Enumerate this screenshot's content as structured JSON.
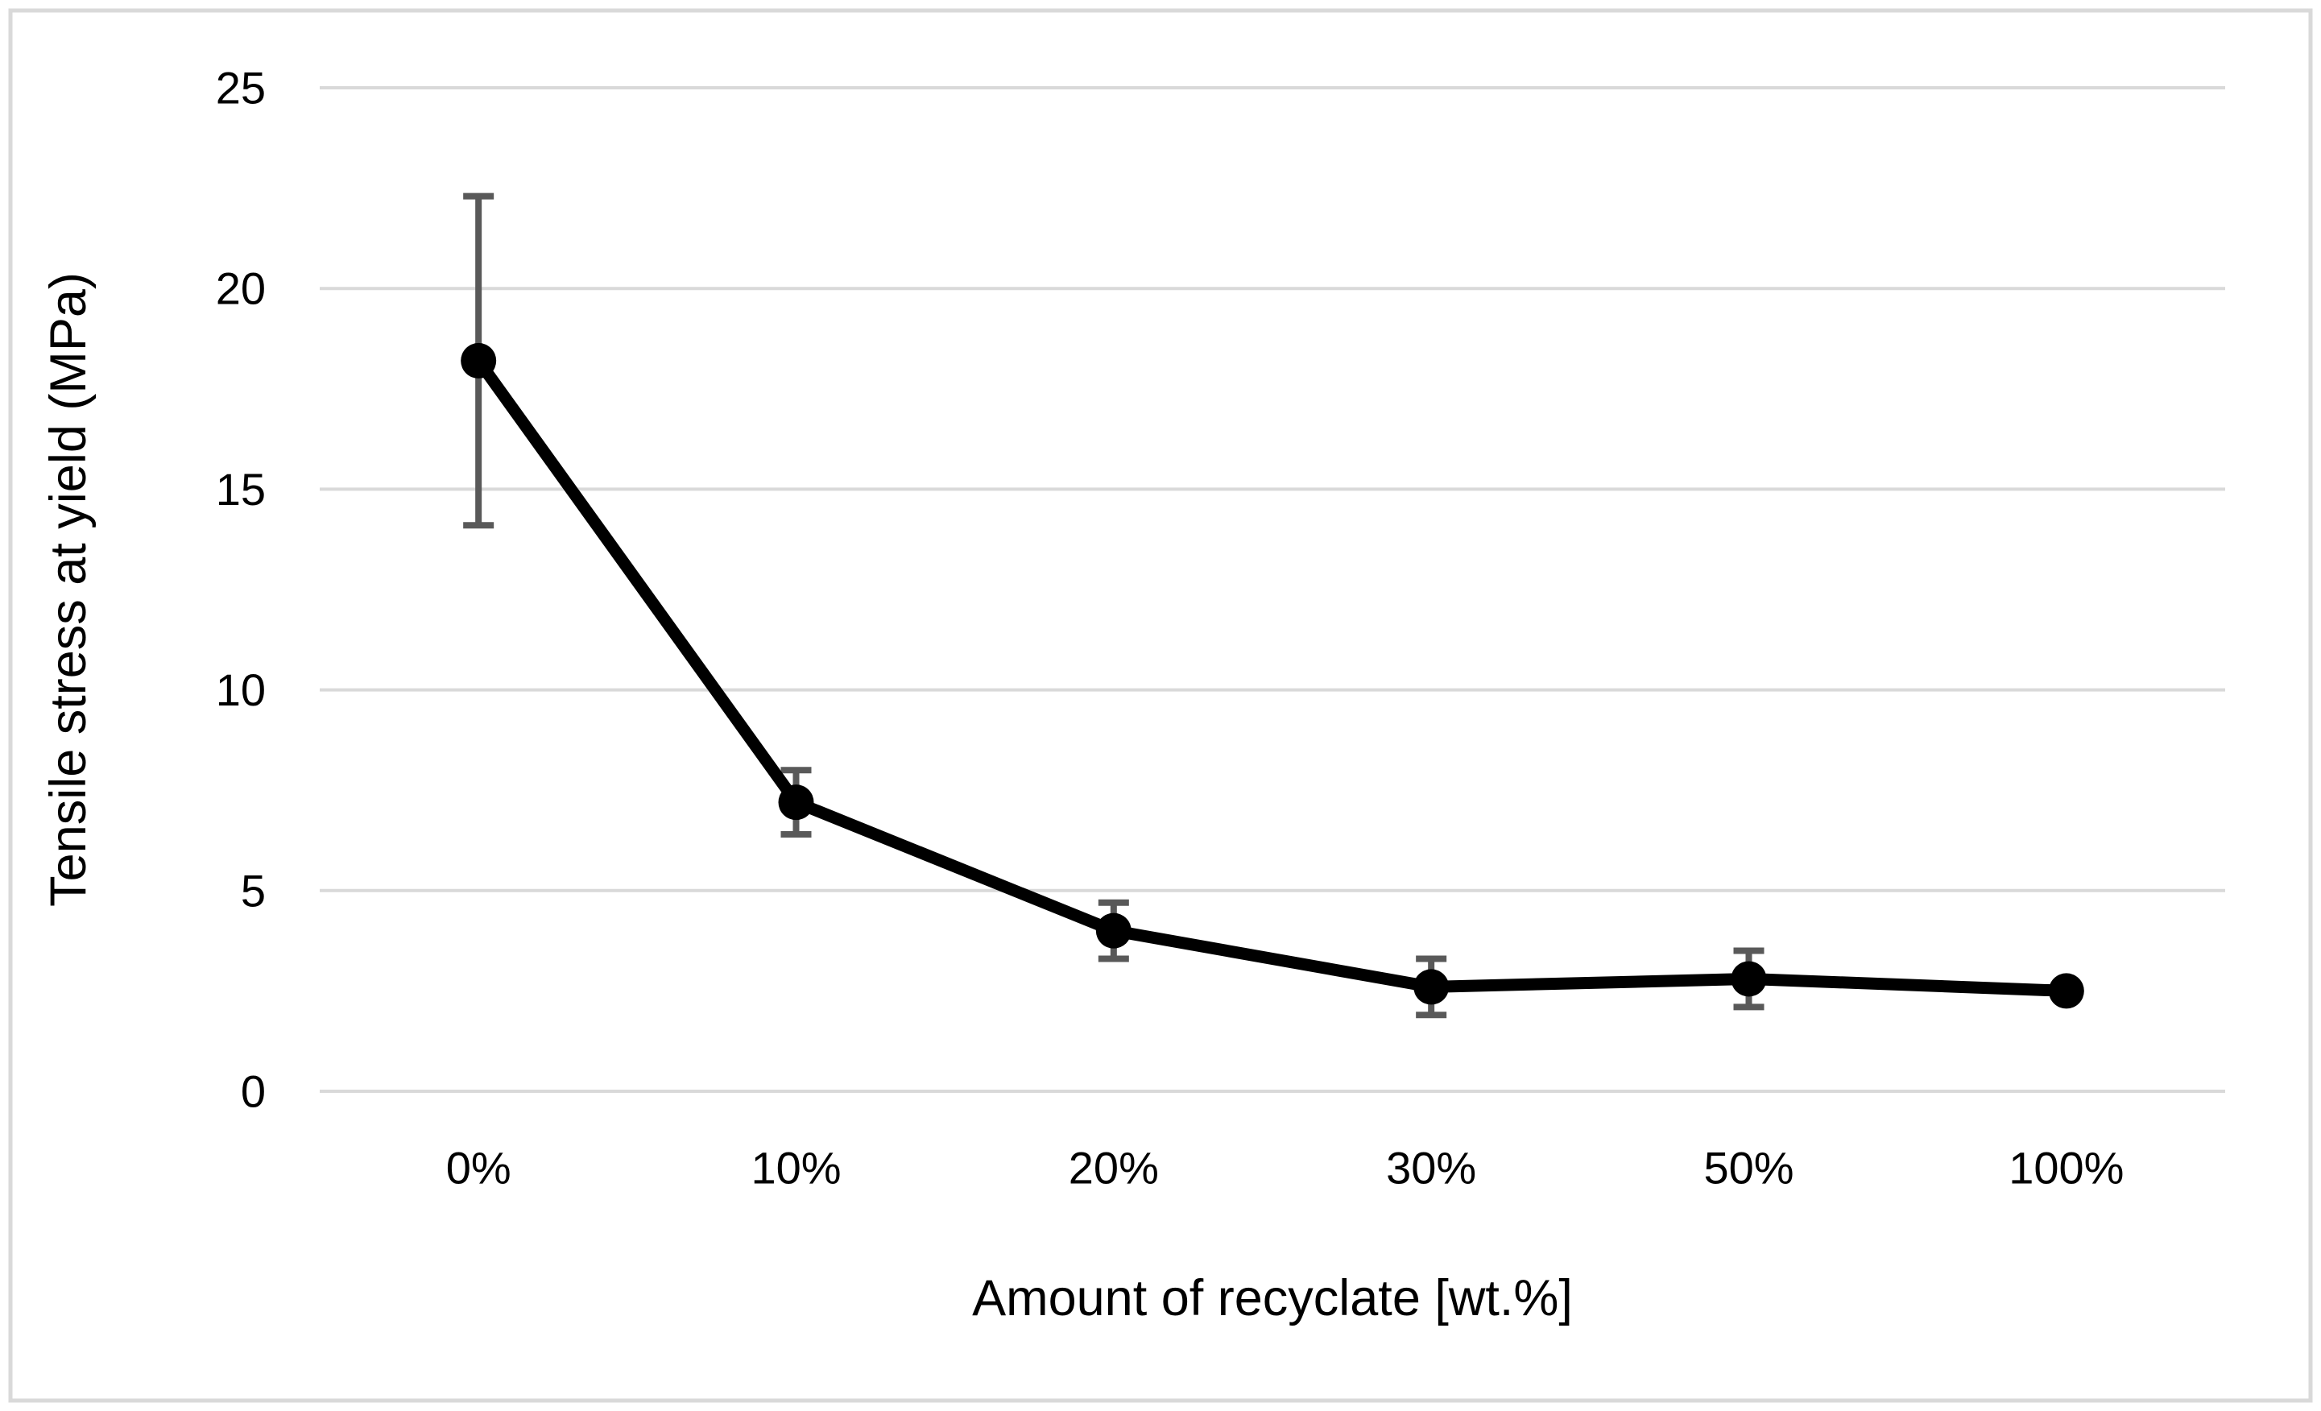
{
  "chart_data": {
    "type": "line",
    "title": "",
    "categories": [
      "0%",
      "10%",
      "20%",
      "30%",
      "50%",
      "100%"
    ],
    "series": [
      {
        "name": "Tensile stress at yield",
        "values": [
          18.2,
          7.2,
          4.0,
          2.6,
          2.8,
          2.5
        ],
        "error_bars": [
          4.1,
          0.8,
          0.7,
          0.7,
          0.7,
          0
        ]
      }
    ],
    "xlabel": "Amount of recyclate [wt.%]",
    "ylabel": "Tensile stress at yield (MPa)",
    "ylim": [
      0,
      25
    ],
    "yticks": [
      0,
      5,
      10,
      15,
      20,
      25
    ],
    "grid": "horizontal",
    "legend": "none",
    "marker": "circle",
    "colors": {
      "line": "#000000",
      "marker": "#000000",
      "error_bar": "#595959",
      "gridline": "#d9d9d9",
      "figure_border": "#d9d9d9",
      "text": "#000000",
      "background": "#ffffff"
    }
  }
}
